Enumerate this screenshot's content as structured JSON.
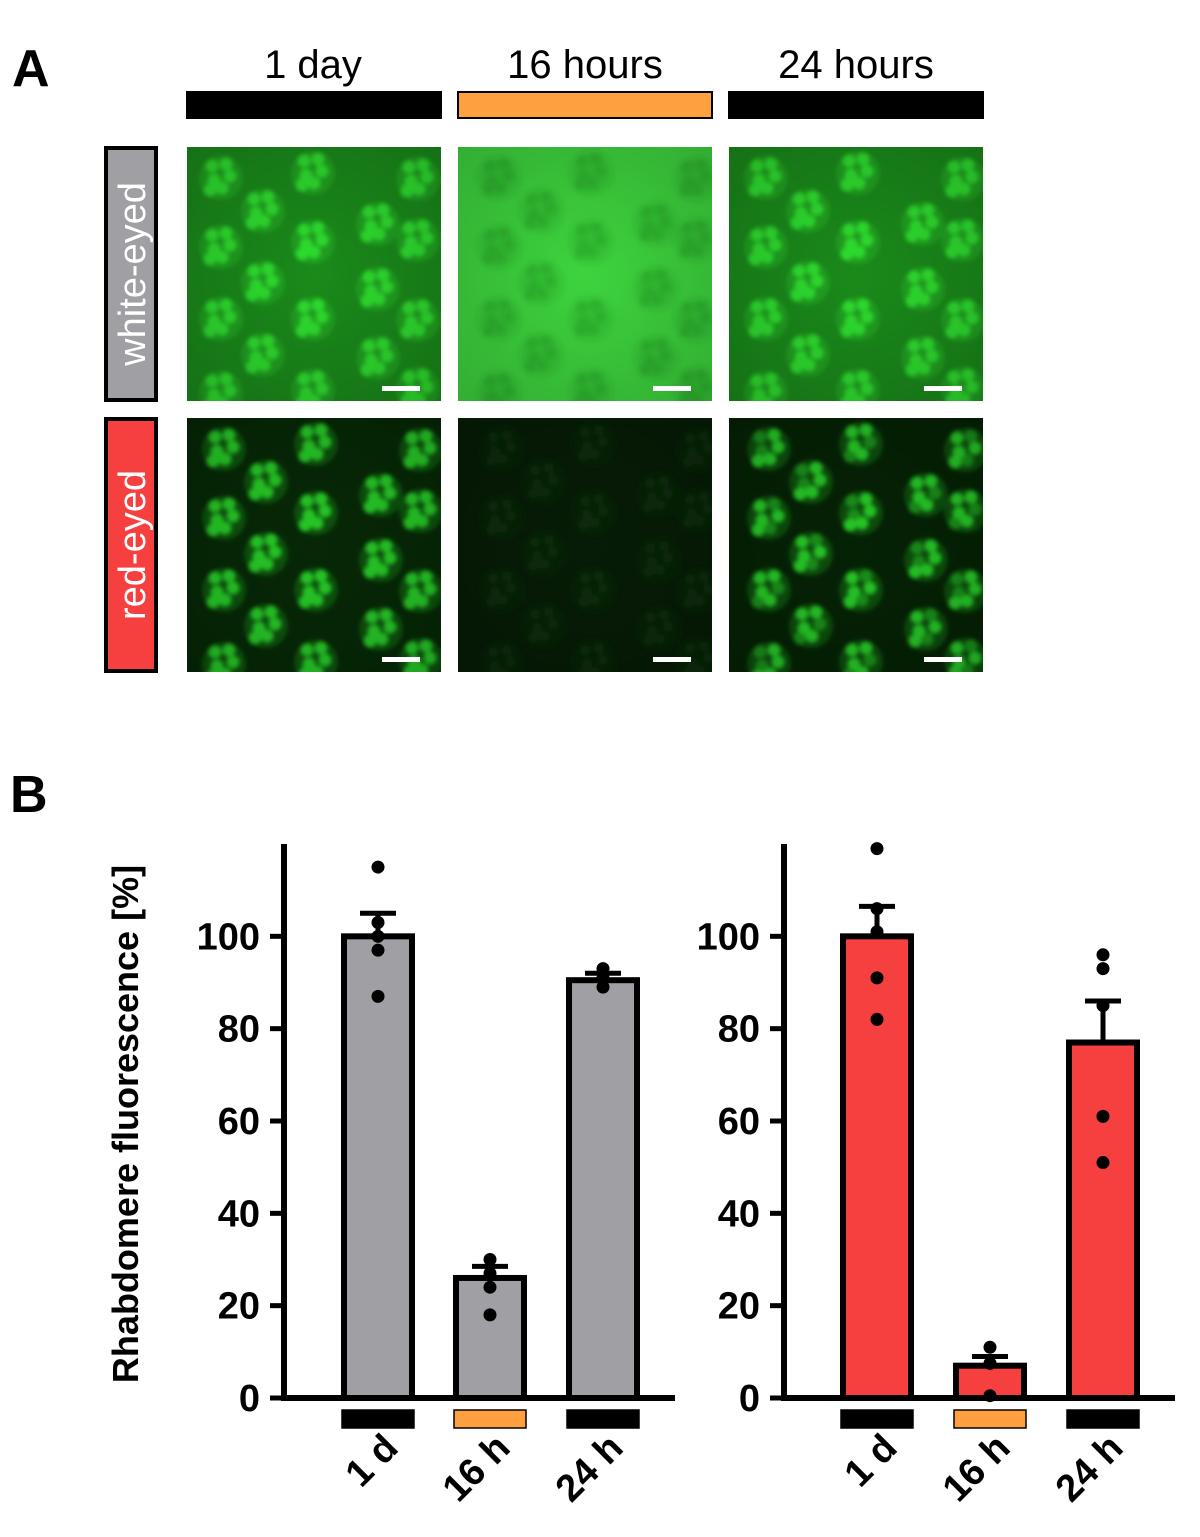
{
  "panel_a": {
    "letter": "A",
    "columns": [
      {
        "label": "1 day",
        "condition": "dark"
      },
      {
        "label": "16 hours",
        "condition": "light"
      },
      {
        "label": "24 hours",
        "condition": "dark"
      }
    ],
    "rows": [
      {
        "label": "white-eyed",
        "color": "#a0a0a4",
        "panels": [
          {
            "brightness": "bright",
            "pattern": "bright-on-green"
          },
          {
            "brightness": "dim",
            "pattern": "dark-on-bright-green"
          },
          {
            "brightness": "bright",
            "pattern": "bright-on-green"
          }
        ]
      },
      {
        "label": "red-eyed",
        "color": "#f64040",
        "panels": [
          {
            "brightness": "bright",
            "pattern": "bright-on-dark"
          },
          {
            "brightness": "very-dim",
            "pattern": "dark"
          },
          {
            "brightness": "medium",
            "pattern": "bright-on-dark"
          }
        ]
      }
    ],
    "scale_bar": true
  },
  "panel_b": {
    "letter": "B"
  },
  "condition_colors": {
    "dark": "#000000",
    "light": "#ffa040"
  },
  "chart_data": [
    {
      "type": "bar",
      "group": "white-eyed",
      "ylabel": "Rhabdomere fluorescence [%]",
      "categories": [
        "1 d",
        "16 h",
        "24 h"
      ],
      "category_conditions": [
        "dark",
        "light",
        "dark"
      ],
      "values": [
        100,
        26,
        90.5
      ],
      "error": [
        5,
        2.5,
        1.5
      ],
      "points": [
        [
          115,
          103,
          100,
          97,
          87
        ],
        [
          30,
          27,
          24,
          18
        ],
        [
          93,
          91,
          89
        ]
      ],
      "yticks": [
        0,
        20,
        40,
        60,
        80,
        100
      ],
      "ylim": [
        0,
        120
      ],
      "bar_color": "#a0a0a4"
    },
    {
      "type": "bar",
      "group": "red-eyed",
      "ylabel": "",
      "categories": [
        "1 d",
        "16 h",
        "24 h"
      ],
      "category_conditions": [
        "dark",
        "light",
        "dark"
      ],
      "values": [
        100,
        7,
        77
      ],
      "error": [
        6.5,
        2,
        9
      ],
      "points": [
        [
          119,
          106,
          101,
          91,
          82
        ],
        [
          11,
          7.5,
          0.5
        ],
        [
          96,
          93,
          85,
          61,
          51
        ]
      ],
      "yticks": [
        0,
        20,
        40,
        60,
        80,
        100
      ],
      "ylim": [
        0,
        120
      ],
      "bar_color": "#f64040"
    }
  ]
}
